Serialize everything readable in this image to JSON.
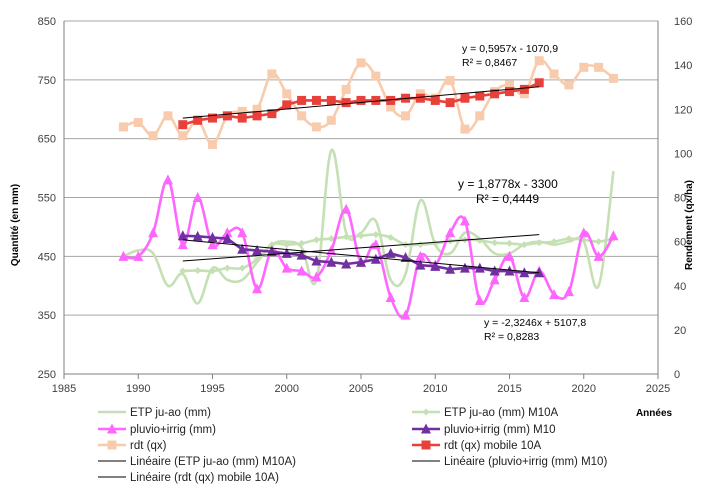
{
  "chart_data": {
    "type": "line",
    "xlabel": "Années",
    "ylabel": "Quantité  (en mm)",
    "y2label": "Rendement (qx/ha)",
    "xlim": [
      1985,
      2025
    ],
    "ylim": [
      250,
      850
    ],
    "y2lim": [
      0,
      160
    ],
    "x_ticks": [
      "1985",
      "1990",
      "1995",
      "2000",
      "2005",
      "2010",
      "2015",
      "2020",
      "2025"
    ],
    "y_ticks": [
      "250",
      "350",
      "450",
      "550",
      "650",
      "750",
      "850"
    ],
    "y2_ticks": [
      "0",
      "20",
      "40",
      "60",
      "80",
      "100",
      "120",
      "140",
      "160"
    ],
    "grid": "horizontal",
    "legend_position": "bottom",
    "annotations": [
      {
        "line1": "y = 0,5957x - 1070,9",
        "line2": "R² = 0,8467"
      },
      {
        "line1": "y = 1,8778x - 3300",
        "line2": "R² = 0,4449"
      },
      {
        "line1": "y = -2,3246x + 5107,8",
        "line2": "R² = 0,8283"
      }
    ],
    "series": [
      {
        "name": "ETP ju-ao (mm)",
        "axis": "left",
        "color": "#c5e0b4",
        "marker": "none",
        "x": [
          1989,
          1990,
          1991,
          1992,
          1993,
          1994,
          1995,
          1996,
          1997,
          1998,
          1999,
          2000,
          2001,
          2002,
          2003,
          2004,
          2005,
          2006,
          2007,
          2008,
          2009,
          2010,
          2011,
          2012,
          2013,
          2014,
          2015,
          2016,
          2017,
          2018,
          2019,
          2020,
          2021,
          2022
        ],
        "y": [
          450,
          460,
          455,
          400,
          420,
          370,
          430,
          410,
          410,
          440,
          470,
          475,
          465,
          410,
          630,
          490,
          490,
          510,
          410,
          420,
          545,
          470,
          455,
          490,
          480,
          455,
          455,
          470,
          475,
          470,
          475,
          475,
          400,
          595
        ]
      },
      {
        "name": "ETP ju-ao (mm) M10A",
        "axis": "left",
        "color": "#c5e0b4",
        "marker": "diamond",
        "x": [
          1993,
          1994,
          1995,
          1996,
          1997,
          1998,
          1999,
          2000,
          2001,
          2002,
          2003,
          2004,
          2005,
          2006,
          2007,
          2008,
          2009,
          2010,
          2011,
          2012,
          2013,
          2014,
          2015,
          2016,
          2017,
          2018,
          2019,
          2020,
          2021,
          2022
        ],
        "y": [
          425,
          426,
          425,
          430,
          430,
          445,
          470,
          470,
          472,
          478,
          480,
          483,
          485,
          487,
          482,
          470,
          470,
          472,
          476,
          478,
          477,
          473,
          472,
          470,
          473,
          475,
          480,
          478,
          475,
          480
        ]
      },
      {
        "name": "pluvio+irrig (mm)",
        "axis": "left",
        "color": "#ff66ff",
        "marker": "triangle",
        "x": [
          1989,
          1990,
          1991,
          1992,
          1993,
          1994,
          1995,
          1996,
          1997,
          1998,
          1999,
          2000,
          2001,
          2002,
          2003,
          2004,
          2005,
          2006,
          2007,
          2008,
          2009,
          2010,
          2011,
          2012,
          2013,
          2014,
          2015,
          2016,
          2017,
          2018,
          2019,
          2020,
          2021,
          2022
        ],
        "y": [
          450,
          450,
          490,
          580,
          470,
          550,
          470,
          490,
          490,
          395,
          460,
          430,
          425,
          415,
          460,
          530,
          440,
          470,
          380,
          350,
          450,
          435,
          490,
          510,
          375,
          410,
          450,
          380,
          425,
          385,
          390,
          490,
          450,
          485
        ]
      },
      {
        "name": "pluvio+irrig (mm) M10",
        "axis": "left",
        "color": "#7030a0",
        "marker": "triangle",
        "x": [
          1993,
          1994,
          1995,
          1996,
          1997,
          1998,
          1999,
          2000,
          2001,
          2002,
          2003,
          2004,
          2005,
          2006,
          2007,
          2008,
          2009,
          2010,
          2011,
          2012,
          2013,
          2014,
          2015,
          2016,
          2017
        ],
        "y": [
          485,
          484,
          482,
          480,
          462,
          460,
          458,
          455,
          452,
          442,
          440,
          437,
          440,
          445,
          455,
          448,
          435,
          433,
          428,
          430,
          430,
          425,
          425,
          422,
          422
        ]
      },
      {
        "name": "rdt (qx)",
        "axis": "right",
        "color": "#f8cbad",
        "marker": "square",
        "x": [
          1989,
          1990,
          1991,
          1992,
          1993,
          1994,
          1995,
          1996,
          1997,
          1998,
          1999,
          2000,
          2001,
          2002,
          2003,
          2004,
          2005,
          2006,
          2007,
          2008,
          2009,
          2010,
          2011,
          2012,
          2013,
          2014,
          2015,
          2016,
          2017,
          2018,
          2019,
          2020,
          2021,
          2022
        ],
        "y": [
          112,
          114,
          108,
          117,
          108,
          115,
          104,
          117,
          119,
          120,
          136,
          127,
          117,
          112,
          115,
          129,
          141,
          135,
          121,
          117,
          127,
          125,
          133,
          111,
          117,
          128,
          131,
          127,
          142,
          136,
          131,
          139,
          139,
          134
        ]
      },
      {
        "name": "rdt (qx) mobile 10A",
        "axis": "right",
        "color": "#e8413b",
        "marker": "square",
        "x": [
          1993,
          1994,
          1995,
          1996,
          1997,
          1998,
          1999,
          2000,
          2001,
          2002,
          2003,
          2004,
          2005,
          2006,
          2007,
          2008,
          2009,
          2010,
          2011,
          2012,
          2013,
          2014,
          2015,
          2016,
          2017
        ],
        "y": [
          113,
          115,
          116,
          117,
          116,
          117,
          118,
          122,
          124,
          124,
          124,
          123,
          124,
          124,
          124,
          125,
          125,
          124,
          123,
          125,
          126,
          127,
          128,
          129,
          132
        ]
      }
    ],
    "trendlines": [
      {
        "name": "Linéaire (ETP ju-ao (mm) M10A)",
        "axis": "left",
        "x": [
          1993,
          2017
        ],
        "y": [
          442,
          487
        ]
      },
      {
        "name": "Linéaire (pluvio+irrig (mm) M10)",
        "axis": "left",
        "x": [
          1993,
          2017
        ],
        "y": [
          478,
          422
        ]
      },
      {
        "name": "Linéaire (rdt (qx) mobile 10A)",
        "axis": "right",
        "x": [
          1993,
          2017
        ],
        "y": [
          116,
          130.2
        ]
      }
    ],
    "legend": [
      {
        "label": "ETP ju-ao (mm)",
        "color": "#c5e0b4",
        "marker": "none"
      },
      {
        "label": "ETP ju-ao (mm) M10A",
        "color": "#c5e0b4",
        "marker": "diamond"
      },
      {
        "label": "pluvio+irrig (mm)",
        "color": "#ff66ff",
        "marker": "triangle"
      },
      {
        "label": "pluvio+irrig (mm) M10",
        "color": "#7030a0",
        "marker": "triangle"
      },
      {
        "label": "rdt (qx)",
        "color": "#f8cbad",
        "marker": "square"
      },
      {
        "label": "rdt (qx) mobile 10A",
        "color": "#e8413b",
        "marker": "square"
      },
      {
        "label": "Linéaire (ETP ju-ao (mm) M10A)",
        "color": "#000000",
        "marker": "none"
      },
      {
        "label": "Linéaire (pluvio+irrig (mm) M10)",
        "color": "#000000",
        "marker": "none"
      },
      {
        "label": "Linéaire (rdt (qx) mobile 10A)",
        "color": "#000000",
        "marker": "none"
      }
    ]
  }
}
